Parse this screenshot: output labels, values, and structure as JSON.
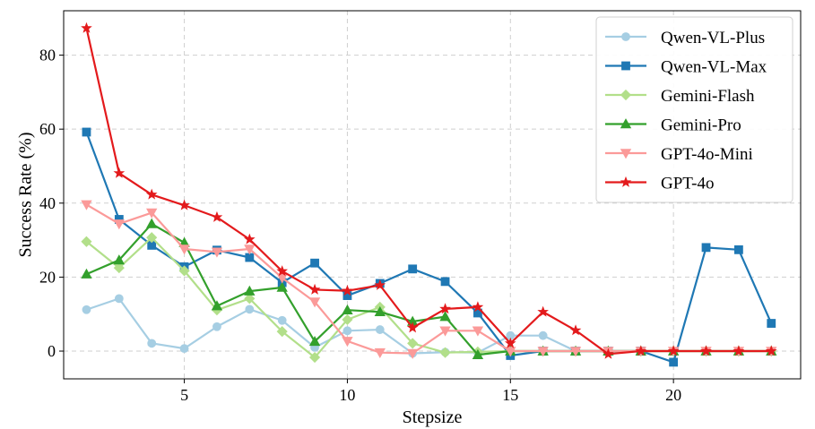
{
  "chart_data": {
    "type": "line",
    "title": "",
    "xlabel": "Stepsize",
    "ylabel": "Success Rate (%)",
    "xlim": [
      1.3,
      23.9
    ],
    "ylim": [
      -7.5,
      92
    ],
    "xticks": [
      5,
      10,
      15,
      20
    ],
    "yticks": [
      0,
      20,
      40,
      60,
      80
    ],
    "grid": true,
    "legend_position": "top-right",
    "x": [
      2,
      3,
      4,
      5,
      6,
      7,
      8,
      9,
      10,
      11,
      12,
      13,
      14,
      15,
      16,
      17,
      18,
      19,
      20,
      21,
      22,
      23
    ],
    "series": [
      {
        "name": "Qwen-VL-Plus",
        "color": "#a6cee3",
        "marker": "circle",
        "values": [
          11.2,
          14.2,
          2.1,
          0.7,
          6.6,
          11.3,
          8.3,
          1.0,
          5.5,
          5.8,
          -0.6,
          -0.3,
          -0.4,
          4.2,
          4.2,
          0,
          0,
          0,
          0,
          0,
          0,
          0
        ]
      },
      {
        "name": "Qwen-VL-Max",
        "color": "#1f78b4",
        "marker": "square",
        "values": [
          59.2,
          35.6,
          28.6,
          22.8,
          27.3,
          25.3,
          18.5,
          23.8,
          15.0,
          18.3,
          22.2,
          18.8,
          10.3,
          -1.2,
          0,
          0,
          0,
          0,
          -3.0,
          28.0,
          27.4,
          7.5
        ]
      },
      {
        "name": "Gemini-Flash",
        "color": "#b2df8a",
        "marker": "diamond",
        "values": [
          29.6,
          22.5,
          30.7,
          21.7,
          11.1,
          14.2,
          5.3,
          -1.7,
          8.5,
          11.9,
          2.1,
          -0.4,
          -0.2,
          0,
          0,
          0,
          0,
          0,
          0,
          0,
          0,
          0
        ]
      },
      {
        "name": "Gemini-Pro",
        "color": "#33a02c",
        "marker": "triangle-up",
        "values": [
          20.8,
          24.6,
          34.4,
          29.3,
          12.2,
          16.2,
          17.2,
          2.6,
          11.1,
          10.6,
          8.0,
          9.3,
          -1.0,
          0,
          0,
          0,
          0,
          0,
          0,
          0,
          0,
          0
        ]
      },
      {
        "name": "GPT-4o-Mini",
        "color": "#fb9a99",
        "marker": "triangle-down",
        "values": [
          39.6,
          34.4,
          37.4,
          27.6,
          26.8,
          27.6,
          19.8,
          13.3,
          2.7,
          -0.4,
          -0.6,
          5.5,
          5.5,
          0,
          0,
          0,
          0,
          0,
          0,
          0,
          0,
          0
        ]
      },
      {
        "name": "GPT-4o",
        "color": "#e31a1c",
        "marker": "star",
        "values": [
          87.3,
          48.1,
          42.3,
          39.4,
          36.2,
          30.2,
          21.6,
          16.6,
          16.3,
          17.8,
          6.3,
          11.4,
          11.9,
          2.1,
          10.6,
          5.6,
          -0.8,
          0,
          0,
          0,
          0,
          0
        ]
      }
    ]
  }
}
